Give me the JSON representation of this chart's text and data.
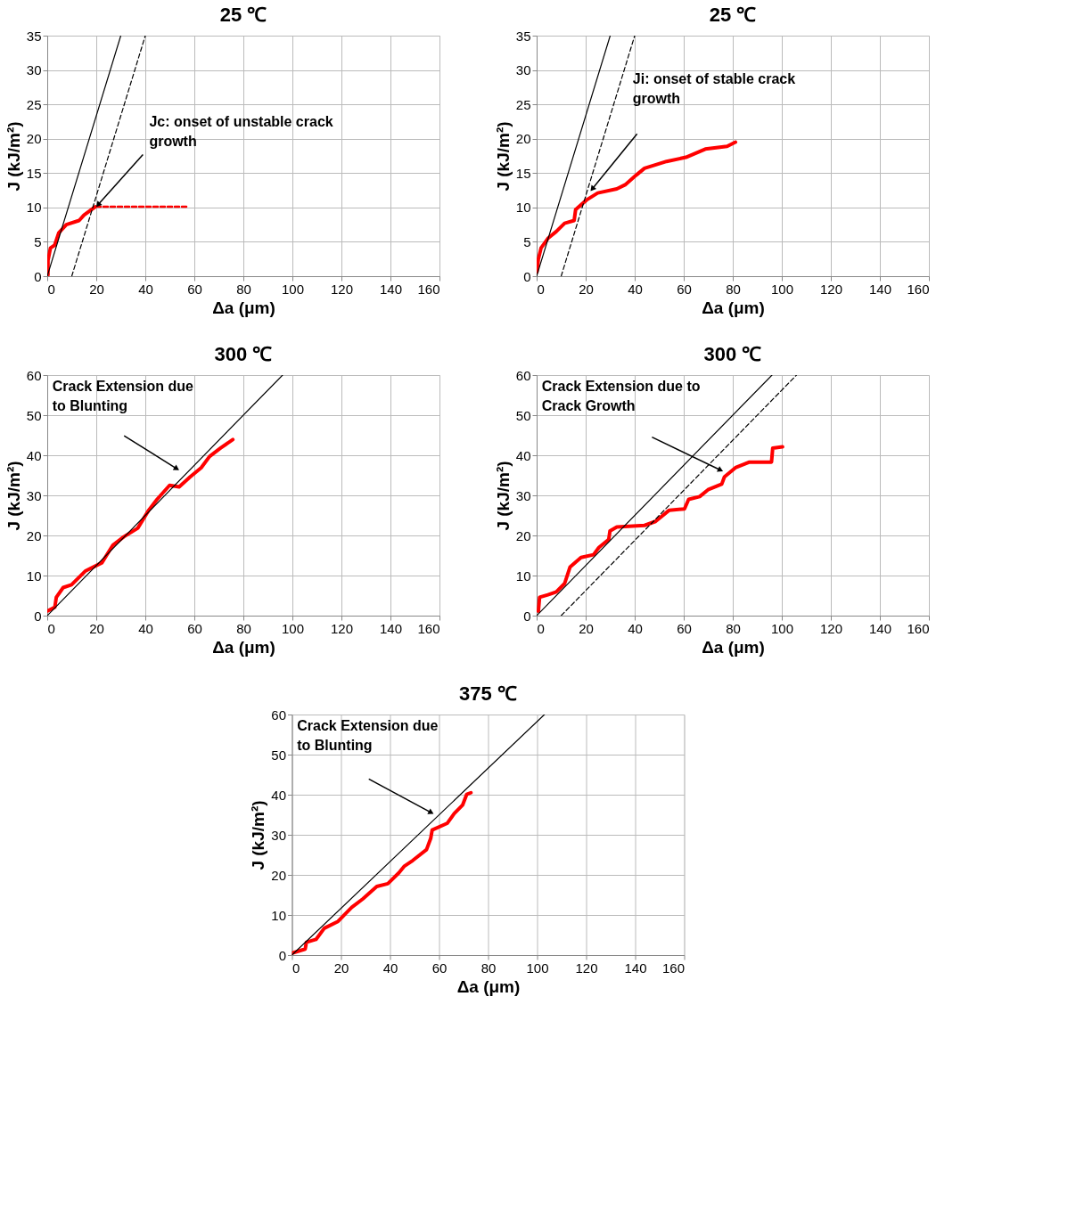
{
  "chart_data": [
    {
      "type": "line",
      "title": "25 ℃",
      "xlabel": "Δa (μm)",
      "ylabel": "J (kJ/m²)",
      "xlim": [
        0,
        160
      ],
      "ylim": [
        0,
        35
      ],
      "xticks": [
        0,
        20,
        40,
        60,
        80,
        100,
        120,
        140,
        160
      ],
      "yticks": [
        0,
        5,
        10,
        15,
        20,
        25,
        30,
        35
      ],
      "grid": true,
      "annotations": [
        {
          "text": "Jc: onset of unstable crack growth",
          "x": 20,
          "y": 10.1
        }
      ],
      "series": [
        {
          "color": "#ff0000",
          "line_style": "solid",
          "x": [
            0.3,
            0.3,
            1.3,
            3,
            4.7,
            7.8,
            13,
            15,
            19.6
          ],
          "values": [
            0.2,
            2.3,
            4.1,
            4.5,
            6.3,
            7.5,
            8.1,
            8.9,
            10.1
          ]
        },
        {
          "color": "#ff0000",
          "line_style": "dashed",
          "x": [
            20,
            57
          ],
          "values": [
            10.1,
            10.1
          ]
        },
        {
          "color": "#000000",
          "line_style": "solid",
          "x": [
            0,
            30
          ],
          "values": [
            0,
            35
          ]
        },
        {
          "color": "#000000",
          "line_style": "dashed",
          "x": [
            10,
            40
          ],
          "values": [
            0,
            35
          ]
        }
      ]
    },
    {
      "type": "line",
      "title": "25 ℃",
      "xlabel": "Δa (μm)",
      "ylabel": "J (kJ/m²)",
      "xlim": [
        0,
        160
      ],
      "ylim": [
        0,
        35
      ],
      "xticks": [
        0,
        20,
        40,
        60,
        80,
        100,
        120,
        140,
        160
      ],
      "yticks": [
        0,
        5,
        10,
        15,
        20,
        25,
        30,
        35
      ],
      "grid": true,
      "annotations": [
        "Ji: onset of stable crack growth"
      ],
      "series": [
        {
          "color": "#ff0000",
          "line_style": "solid",
          "x": [
            0.1,
            0.7,
            1.8,
            4.6,
            8,
            11.4,
            15.3,
            15.9,
            20.4,
            24.9,
            32.7,
            36.1,
            40.6,
            44,
            53,
            60.9,
            68.8,
            77.7,
            81.1
          ],
          "values": [
            0.6,
            2.5,
            4.1,
            5.5,
            6.5,
            7.7,
            8.1,
            9.7,
            11.1,
            12.1,
            12.7,
            13.3,
            14.7,
            15.7,
            16.7,
            17.3,
            18.5,
            18.9,
            19.5
          ]
        },
        {
          "color": "#000000",
          "line_style": "solid",
          "x": [
            0,
            30
          ],
          "values": [
            0,
            35
          ]
        },
        {
          "color": "#000000",
          "line_style": "dashed",
          "x": [
            10,
            40
          ],
          "values": [
            0,
            35
          ]
        }
      ]
    },
    {
      "type": "line",
      "title": "300 ℃",
      "xlabel": "Δa (μm)",
      "ylabel": "J (kJ/m²)",
      "xlim": [
        0,
        160
      ],
      "ylim": [
        0,
        60
      ],
      "xticks": [
        0,
        20,
        40,
        60,
        80,
        100,
        120,
        140,
        160
      ],
      "yticks": [
        0,
        10,
        20,
        30,
        40,
        50,
        60
      ],
      "grid": true,
      "annotations": [
        "Crack Extension due to Blunting"
      ],
      "series": [
        {
          "color": "#ff0000",
          "line_style": "solid",
          "x": [
            0.2,
            3.1,
            3.7,
            6.5,
            9.9,
            15.5,
            22.3,
            26.8,
            31.3,
            36.9,
            41.4,
            44.8,
            49.9,
            53.8,
            58.3,
            62.8,
            66.2,
            70.7,
            75.7
          ],
          "values": [
            1.2,
            2.1,
            4.6,
            7,
            7.7,
            11.1,
            13.2,
            17.6,
            19.7,
            21.8,
            26.3,
            29,
            32.5,
            32.1,
            34.6,
            36.9,
            39.7,
            41.8,
            43.9
          ]
        },
        {
          "color": "#000000",
          "line_style": "solid",
          "x": [
            0,
            96
          ],
          "values": [
            0,
            60
          ]
        }
      ]
    },
    {
      "type": "line",
      "title": "300 ℃",
      "xlabel": "Δa (μm)",
      "ylabel": "J (kJ/m²)",
      "xlim": [
        0,
        160
      ],
      "ylim": [
        0,
        60
      ],
      "xticks": [
        0,
        20,
        40,
        60,
        80,
        100,
        120,
        140,
        160
      ],
      "yticks": [
        0,
        10,
        20,
        30,
        40,
        50,
        60
      ],
      "grid": true,
      "annotations": [
        "Crack Extension due to Crack Growth"
      ],
      "series": [
        {
          "color": "#ff0000",
          "line_style": "solid",
          "x": [
            0.7,
            1.2,
            4.6,
            8,
            11.4,
            13.6,
            18.1,
            23.2,
            25.4,
            29.4,
            29.9,
            32.7,
            44,
            48.5,
            54.1,
            60.3,
            62,
            66.5,
            69.9,
            75.5,
            76.6,
            81.1,
            86.8,
            95.8,
            96.3,
            100.3
          ],
          "values": [
            1.1,
            4.6,
            5.2,
            5.9,
            8,
            12.1,
            14.5,
            15.2,
            17,
            19,
            21.1,
            22.1,
            22.5,
            23.5,
            26.3,
            26.6,
            29,
            29.7,
            31.4,
            32.8,
            34.6,
            36.9,
            38.3,
            38.3,
            41.8,
            42.1
          ]
        },
        {
          "color": "#000000",
          "line_style": "solid",
          "x": [
            0,
            96
          ],
          "values": [
            0,
            60
          ]
        },
        {
          "color": "#000000",
          "line_style": "dashed",
          "x": [
            10,
            106
          ],
          "values": [
            0,
            60
          ]
        }
      ]
    },
    {
      "type": "line",
      "title": "375 ℃",
      "xlabel": "Δa (μm)",
      "ylabel": "J (kJ/m²)",
      "xlim": [
        0,
        160
      ],
      "ylim": [
        0,
        60
      ],
      "xticks": [
        0,
        20,
        40,
        60,
        80,
        100,
        120,
        140,
        160
      ],
      "yticks": [
        0,
        10,
        20,
        30,
        40,
        50,
        60
      ],
      "grid": true,
      "annotations": [
        "Crack Extension due to Blunting"
      ],
      "series": [
        {
          "color": "#ff0000",
          "line_style": "solid",
          "x": [
            0.1,
            5.4,
            5.9,
            9.8,
            13.2,
            18.8,
            24.4,
            28.9,
            34.6,
            39.1,
            43.6,
            45.9,
            49.3,
            54.9,
            56.6,
            57.2,
            63.4,
            66.2,
            69.6,
            71.3,
            73
          ],
          "values": [
            0.5,
            1.5,
            3.2,
            3.9,
            6.7,
            8.4,
            11.9,
            14,
            17.1,
            17.8,
            20.5,
            22.2,
            23.6,
            26.3,
            29.1,
            31.2,
            32.9,
            35.3,
            37.4,
            40.1,
            40.5
          ]
        },
        {
          "color": "#000000",
          "line_style": "solid",
          "x": [
            0,
            103
          ],
          "values": [
            0,
            60
          ]
        }
      ]
    }
  ]
}
